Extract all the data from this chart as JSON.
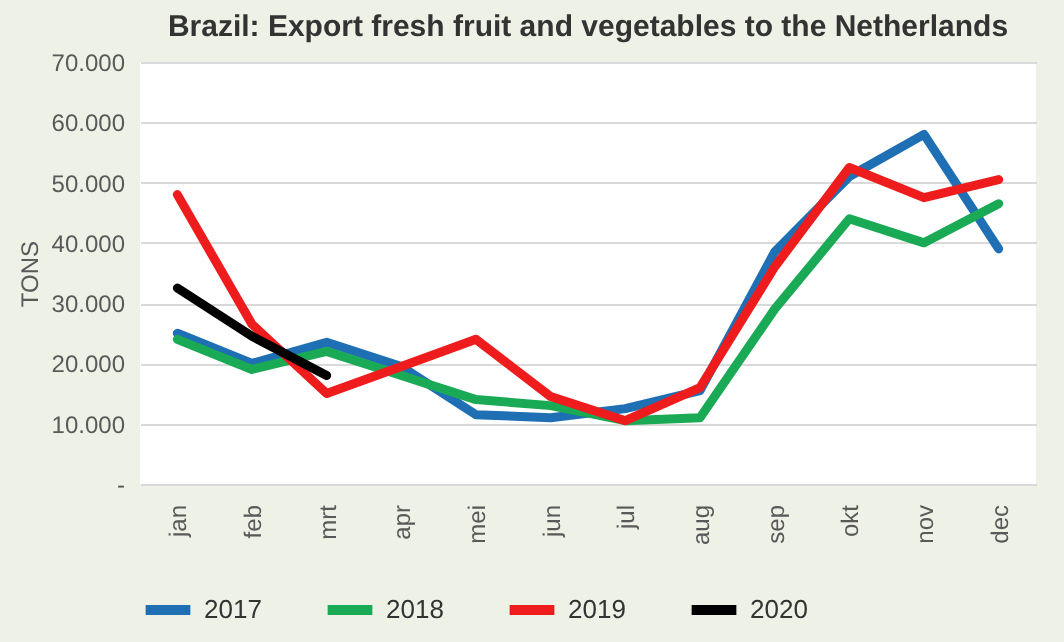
{
  "chart_data": {
    "type": "line",
    "title": "Brazil: Export fresh fruit and vegetables to the Netherlands",
    "ylabel": "TONS",
    "categories": [
      "jan",
      "feb",
      "mrt",
      "apr",
      "mei",
      "jun",
      "jul",
      "aug",
      "sep",
      "okt",
      "nov",
      "dec"
    ],
    "series": [
      {
        "name": "2017",
        "color": "#1f6fb5",
        "values": [
          25000,
          20000,
          23500,
          19500,
          11500,
          11000,
          12500,
          15500,
          38500,
          51000,
          58000,
          39000
        ]
      },
      {
        "name": "2018",
        "color": "#1aaa55",
        "values": [
          24000,
          19000,
          22000,
          18000,
          14000,
          13000,
          10500,
          11000,
          29000,
          44000,
          40000,
          46500
        ]
      },
      {
        "name": "2019",
        "color": "#ee1c1c",
        "values": [
          48000,
          26500,
          15000,
          19500,
          24000,
          14500,
          10500,
          16000,
          36000,
          52500,
          47500,
          50500
        ]
      },
      {
        "name": "2020",
        "color": "#000000",
        "values": [
          32500,
          24500,
          18000,
          null,
          null,
          null,
          null,
          null,
          null,
          null,
          null,
          null
        ]
      }
    ],
    "ylim": [
      0,
      70000
    ],
    "yticks": [
      {
        "value": 0,
        "label": "-"
      },
      {
        "value": 10000,
        "label": "10.000"
      },
      {
        "value": 20000,
        "label": "20.000"
      },
      {
        "value": 30000,
        "label": "30.000"
      },
      {
        "value": 40000,
        "label": "40.000"
      },
      {
        "value": 50000,
        "label": "50.000"
      },
      {
        "value": 60000,
        "label": "60.000"
      },
      {
        "value": 70000,
        "label": "70.000"
      }
    ],
    "grid": "y",
    "legend": "bottom",
    "marker": "none",
    "line_style": "solid"
  }
}
